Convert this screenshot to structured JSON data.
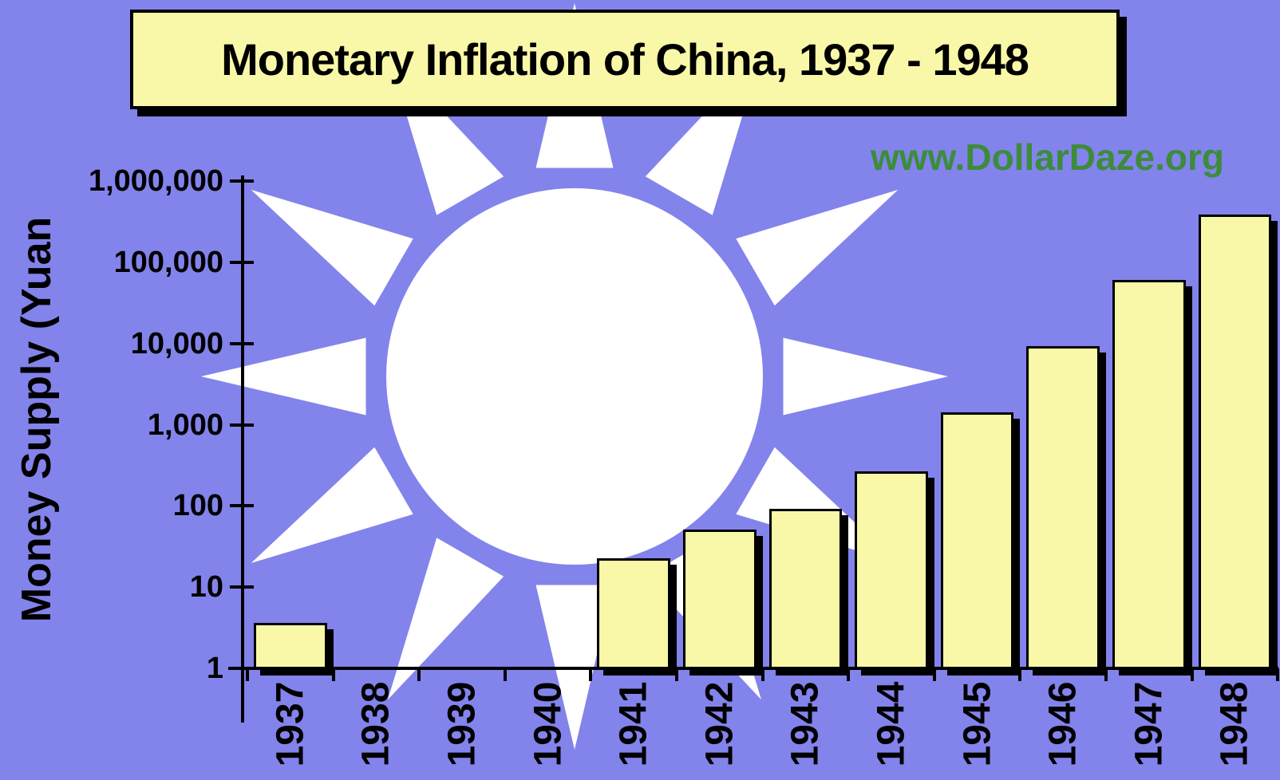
{
  "title": "Monetary Inflation of China, 1937 - 1948",
  "watermark": "www.DollarDaze.org",
  "y_axis_title": "Money Supply (Yuan",
  "colors": {
    "background": "#8383ec",
    "bar_fill": "#f8f8a8",
    "title_box_fill": "#f8f8a8",
    "outline": "#000000",
    "shadow": "#000000",
    "watermark_green": "#3c8c3c",
    "sun_white": "#ffffff",
    "text": "#000000"
  },
  "chart_data": {
    "type": "bar",
    "title": "Monetary Inflation of China, 1937 - 1948",
    "xlabel": "",
    "ylabel": "Money Supply (Yuan",
    "y_scale": "log10",
    "ylim": [
      1,
      1000000
    ],
    "grid": false,
    "legend_position": "none",
    "y_tick_labels": [
      "1,000,000",
      "100,000",
      "10,000",
      "1,000",
      "100",
      "10",
      "1"
    ],
    "categories": [
      "1937",
      "1938",
      "1939",
      "1940",
      "1941",
      "1942",
      "1943",
      "1944",
      "1945",
      "1946",
      "1947",
      "1948"
    ],
    "values": [
      3.7,
      null,
      null,
      null,
      23,
      52,
      95,
      270,
      1450,
      9500,
      62000,
      395000
    ],
    "notes": "No bars shown for 1938-1940; logarithmic y axis, each decade ~equal spacing"
  }
}
